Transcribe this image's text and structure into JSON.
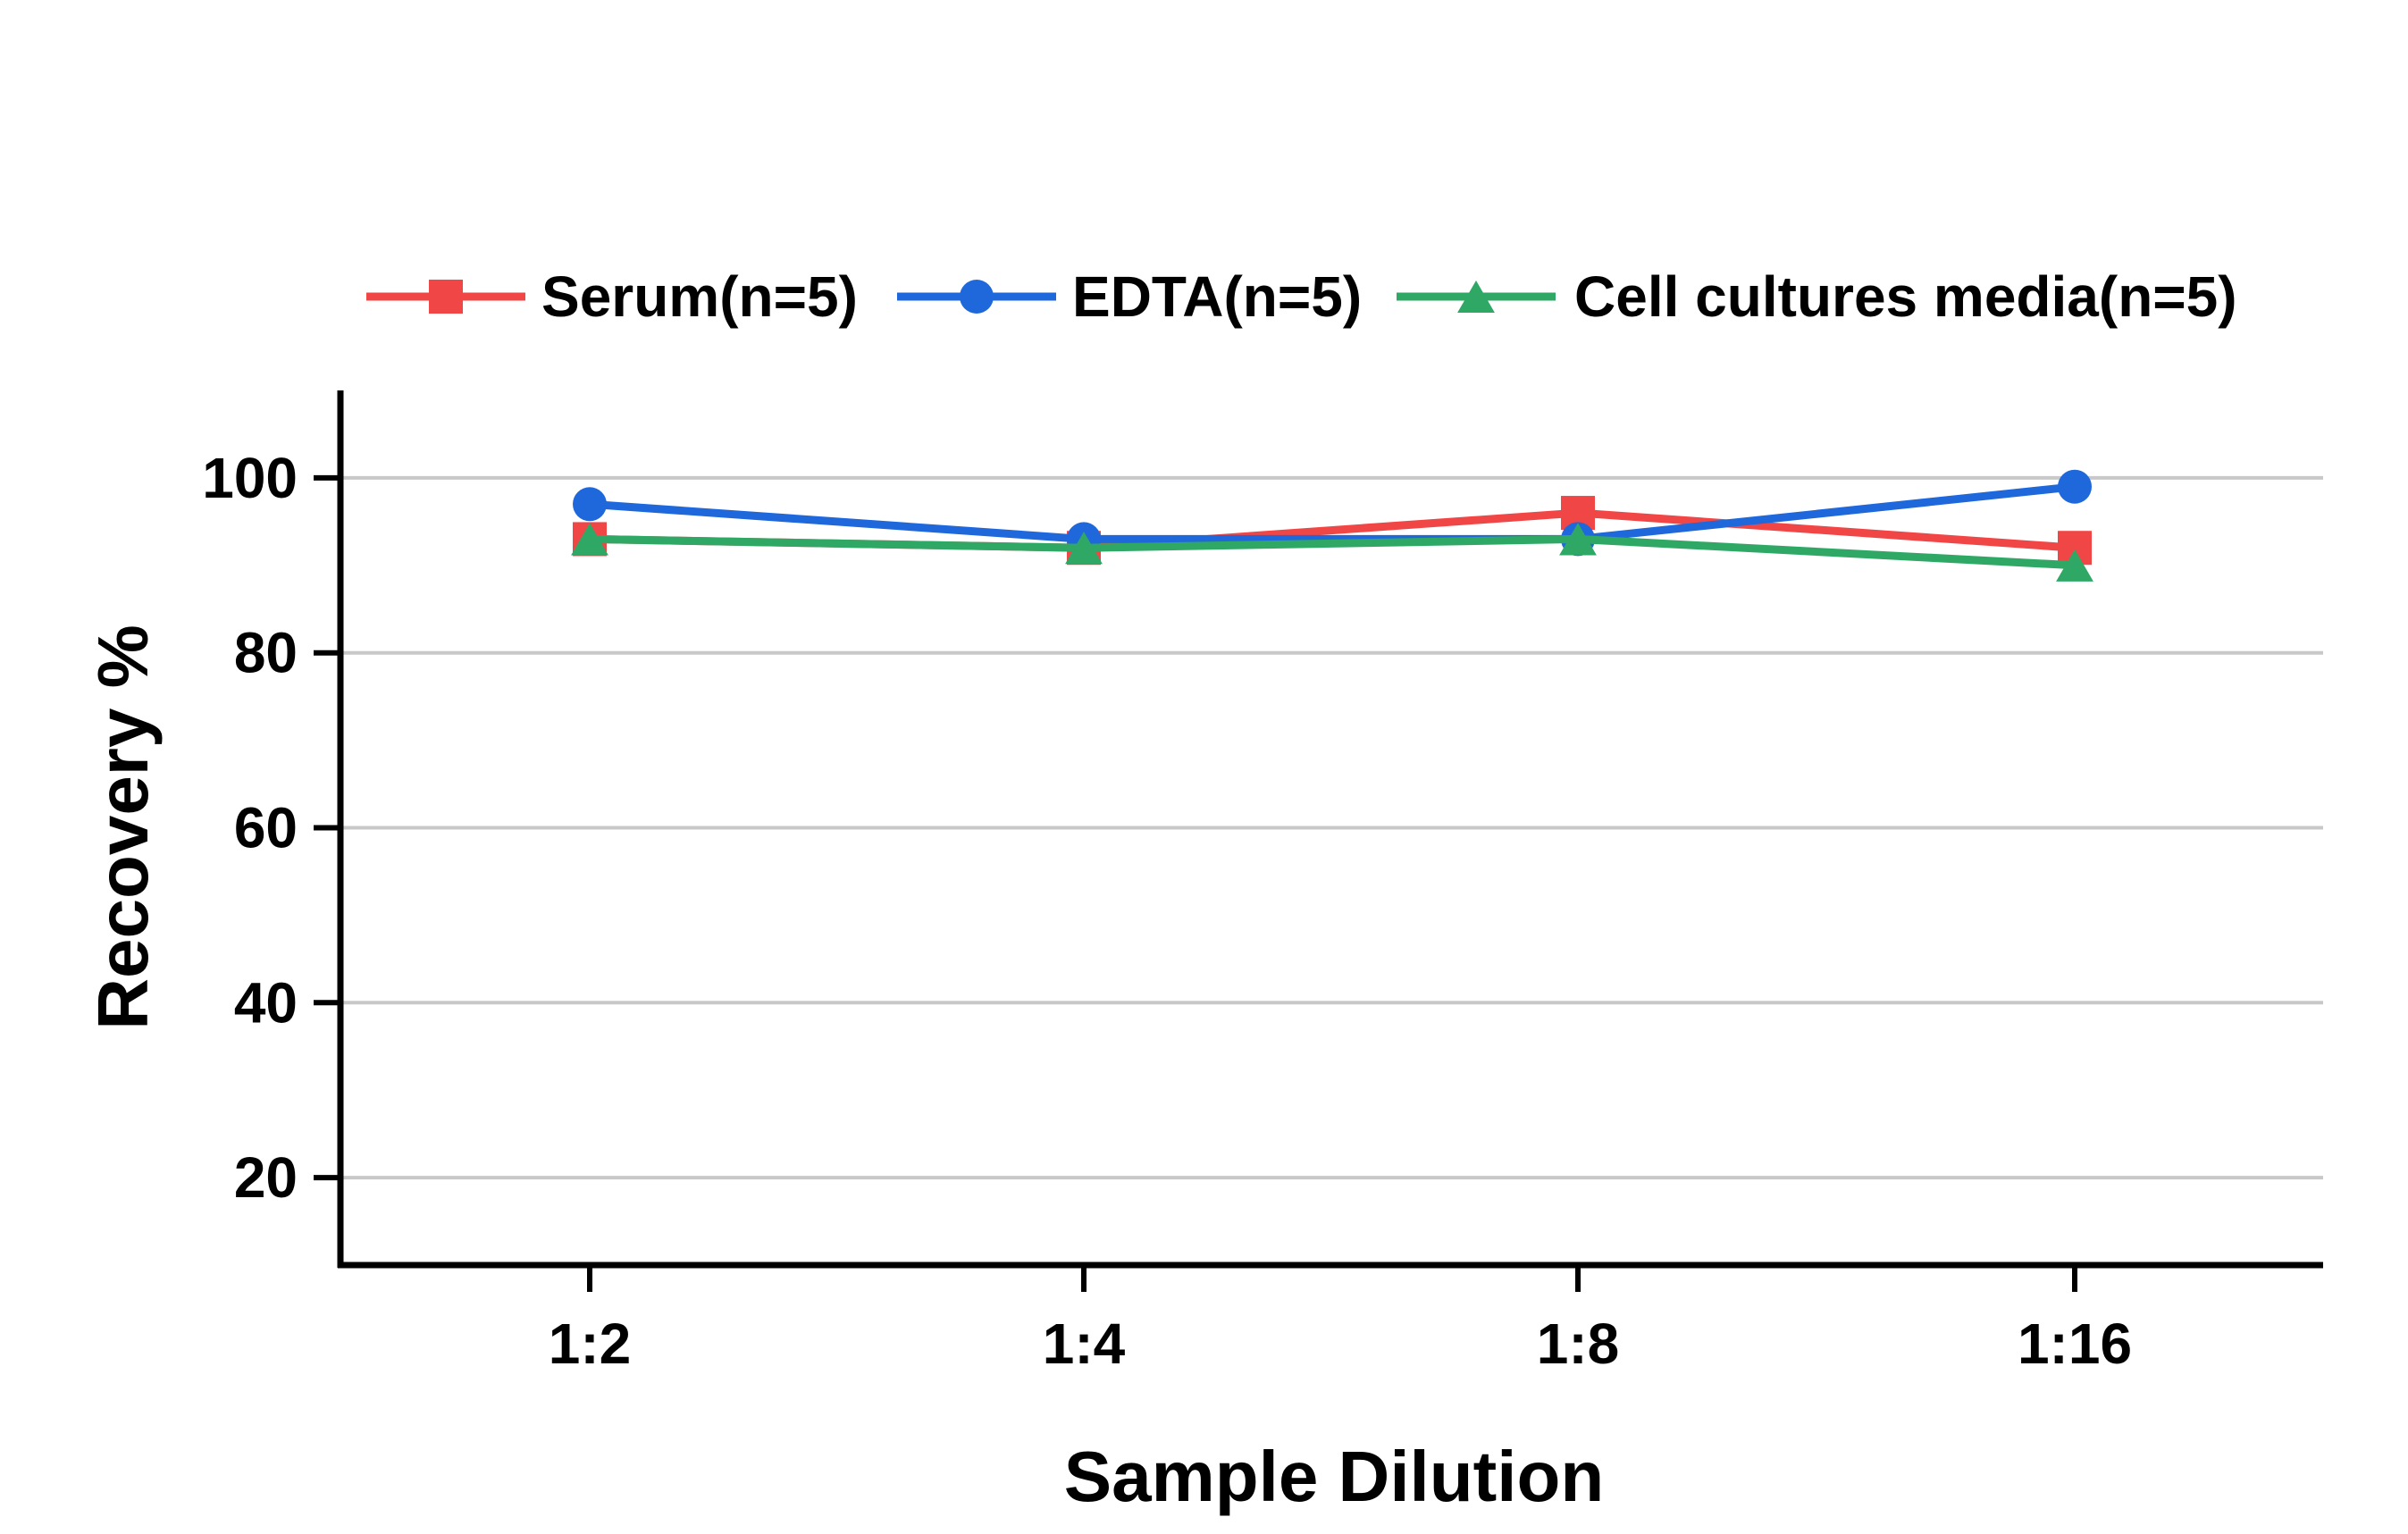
{
  "chart_data": {
    "type": "line",
    "title": "",
    "xlabel": "Sample Dilution",
    "ylabel": "Recovery %",
    "categories": [
      "1:2",
      "1:4",
      "1:8",
      "1:16"
    ],
    "ylim": [
      10,
      110
    ],
    "yticks": [
      20,
      40,
      60,
      80,
      100
    ],
    "grid": true,
    "legend_position": "top",
    "series": [
      {
        "name": "Serum(n=5)",
        "values": [
          93,
          92,
          96,
          92
        ],
        "color": "#f04646",
        "marker": "square"
      },
      {
        "name": "EDTA(n=5)",
        "values": [
          97,
          93,
          93,
          99
        ],
        "color": "#1f68dc",
        "marker": "circle"
      },
      {
        "name": "Cell cultures media(n=5)",
        "values": [
          93,
          92,
          93,
          90
        ],
        "color": "#2fa866",
        "marker": "triangle"
      }
    ]
  }
}
